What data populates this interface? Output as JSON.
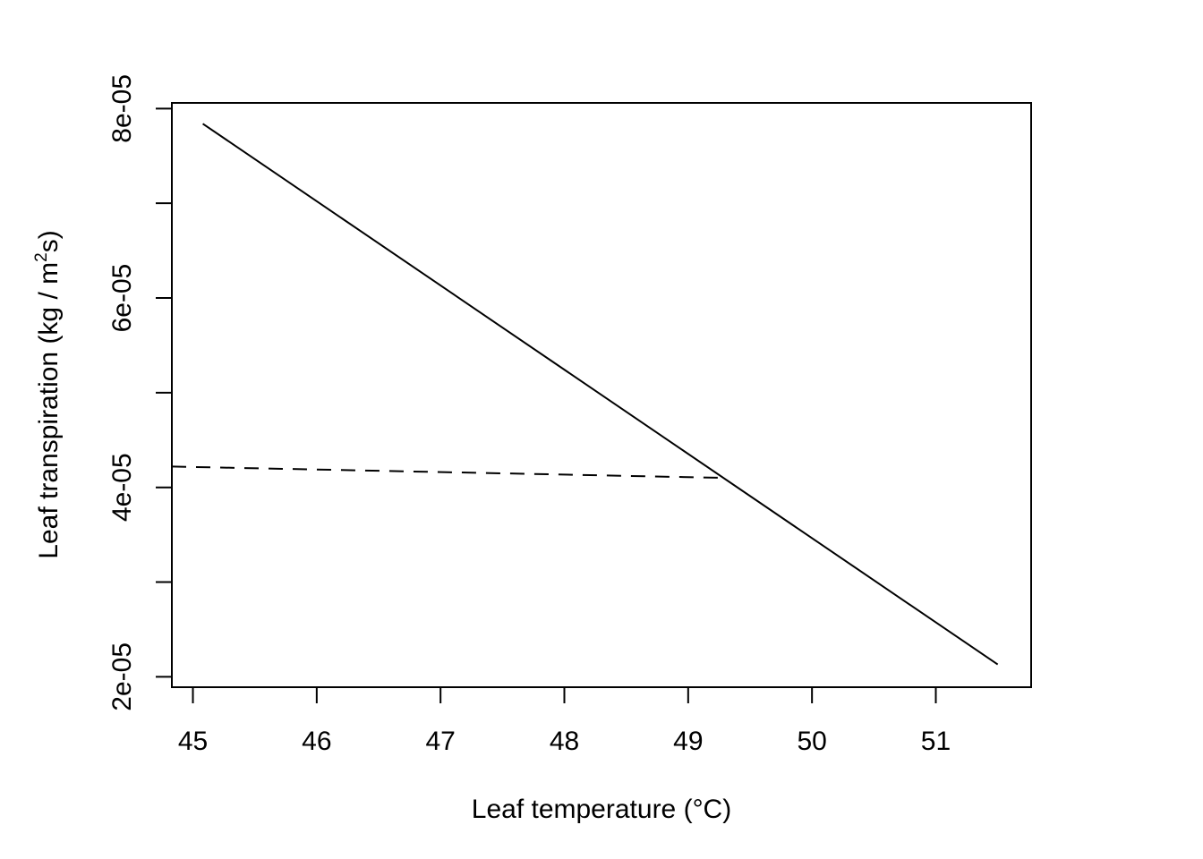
{
  "chart_data": {
    "type": "line",
    "xlabel": "Leaf temperature (°C)",
    "ylabel": {
      "prefix": "Leaf transpiration (kg / m",
      "superscript": "2",
      "suffix": "s)"
    },
    "xlim": [
      44.83,
      51.77
    ],
    "ylim": [
      1.89e-05,
      8.06e-05
    ],
    "x_ticks": [
      45,
      46,
      47,
      48,
      49,
      50,
      51
    ],
    "x_tick_labels": [
      "45",
      "46",
      "47",
      "48",
      "49",
      "50",
      "51"
    ],
    "y_ticks": [
      2e-05,
      3e-05,
      4e-05,
      5e-05,
      6e-05,
      7e-05,
      8e-05
    ],
    "y_tick_labels": [
      "2e-05",
      "",
      "4e-05",
      "",
      "6e-05",
      "",
      "8e-05"
    ],
    "grid": false,
    "legend": "none",
    "series": [
      {
        "line_style": "solid",
        "color": "#000000",
        "x": [
          45.08,
          51.5
        ],
        "y": [
          7.84e-05,
          2.13e-05
        ]
      },
      {
        "line_style": "dashed",
        "color": "#000000",
        "x": [
          44.83,
          49.3
        ],
        "y": [
          4.22e-05,
          4.1e-05
        ]
      }
    ]
  }
}
